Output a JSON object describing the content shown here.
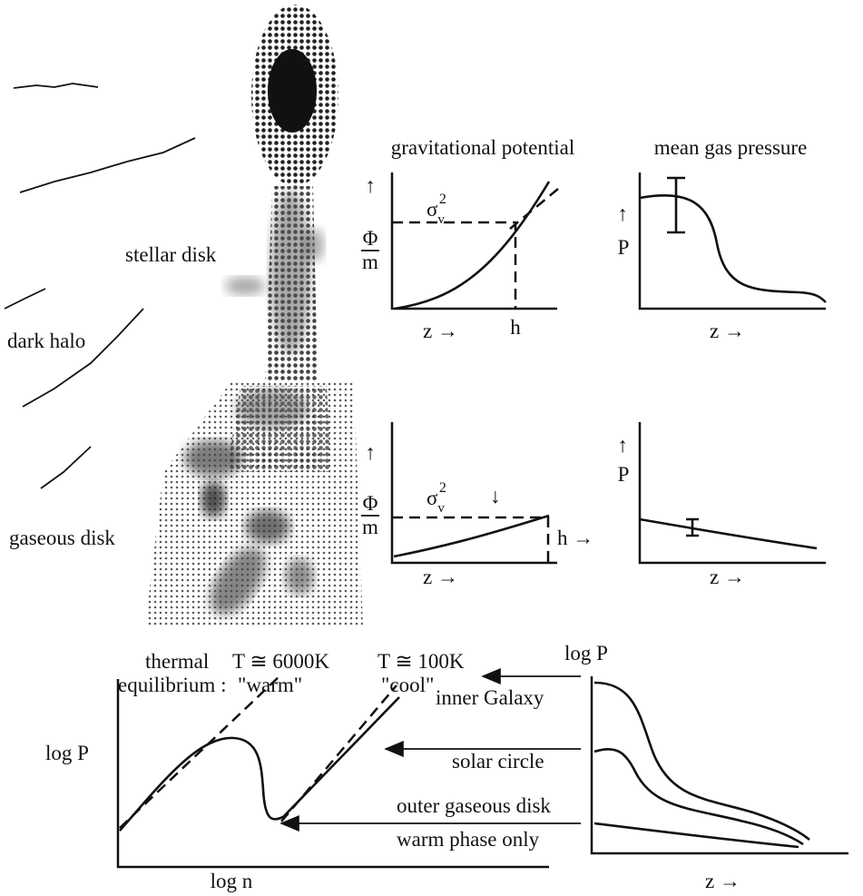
{
  "galaxy_labels": {
    "stellar_disk": "stellar disk",
    "dark_halo": "dark halo",
    "gaseous_disk": "gaseous disk"
  },
  "panels": [
    {
      "title": "gravitational potential",
      "y_arrow": "↑",
      "y_label": {
        "num": "Φ",
        "den": "m"
      },
      "sigma": {
        "symbol": "σ",
        "sub": "v",
        "sup": "2"
      },
      "x_label": "z  →",
      "h_label": "h"
    },
    {
      "title": "mean gas pressure",
      "y_arrow": "↑",
      "y_label": "P",
      "x_label": "z  →"
    },
    {
      "y_arrow": "↑",
      "y_label": {
        "num": "Φ",
        "den": "m"
      },
      "sigma": {
        "symbol": "σ",
        "sub": "v",
        "sup": "2"
      },
      "sigma_arrow": "↓",
      "x_label": "z  →",
      "h_label": "h →"
    },
    {
      "y_arrow": "↑",
      "y_label": "P",
      "x_label": "z  →"
    }
  ],
  "thermal": {
    "title_line1": "thermal",
    "title_line2": "equilibrium :",
    "warm_temp": "T ≅ 6000K",
    "warm": "\"warm\"",
    "cool_temp": "T ≅ 100K",
    "cool": "\"cool\"",
    "y_label": "log P",
    "x_label": "log n"
  },
  "profiles": {
    "y_label": "log P",
    "inner": "inner Galaxy",
    "solar": "solar circle",
    "outer_line1": "outer gaseous disk",
    "outer_line2": "warm phase only",
    "x_label": "z  →"
  }
}
